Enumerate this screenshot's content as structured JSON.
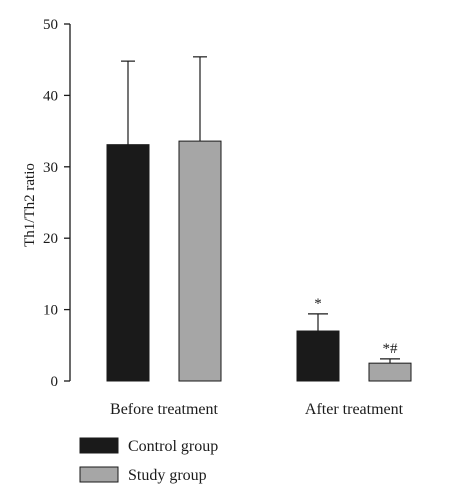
{
  "chart_data": {
    "type": "bar",
    "title": "",
    "xlabel": "",
    "ylabel": "Th1/Th2 ratio",
    "ylim": [
      0,
      50
    ],
    "yticks": [
      0,
      10,
      20,
      30,
      40,
      50
    ],
    "grid": false,
    "legend_position": "bottom-left",
    "categories": [
      "Before treatment",
      "After treatment"
    ],
    "series": [
      {
        "name": "Control group",
        "color": "#1a1a1a",
        "values": [
          33.1,
          7.0
        ],
        "error": [
          11.7,
          2.4
        ],
        "annotations": [
          "",
          "*"
        ]
      },
      {
        "name": "Study group",
        "color": "#a6a6a6",
        "values": [
          33.6,
          2.5
        ],
        "error": [
          11.8,
          0.6
        ],
        "annotations": [
          "",
          "*#"
        ]
      }
    ]
  }
}
